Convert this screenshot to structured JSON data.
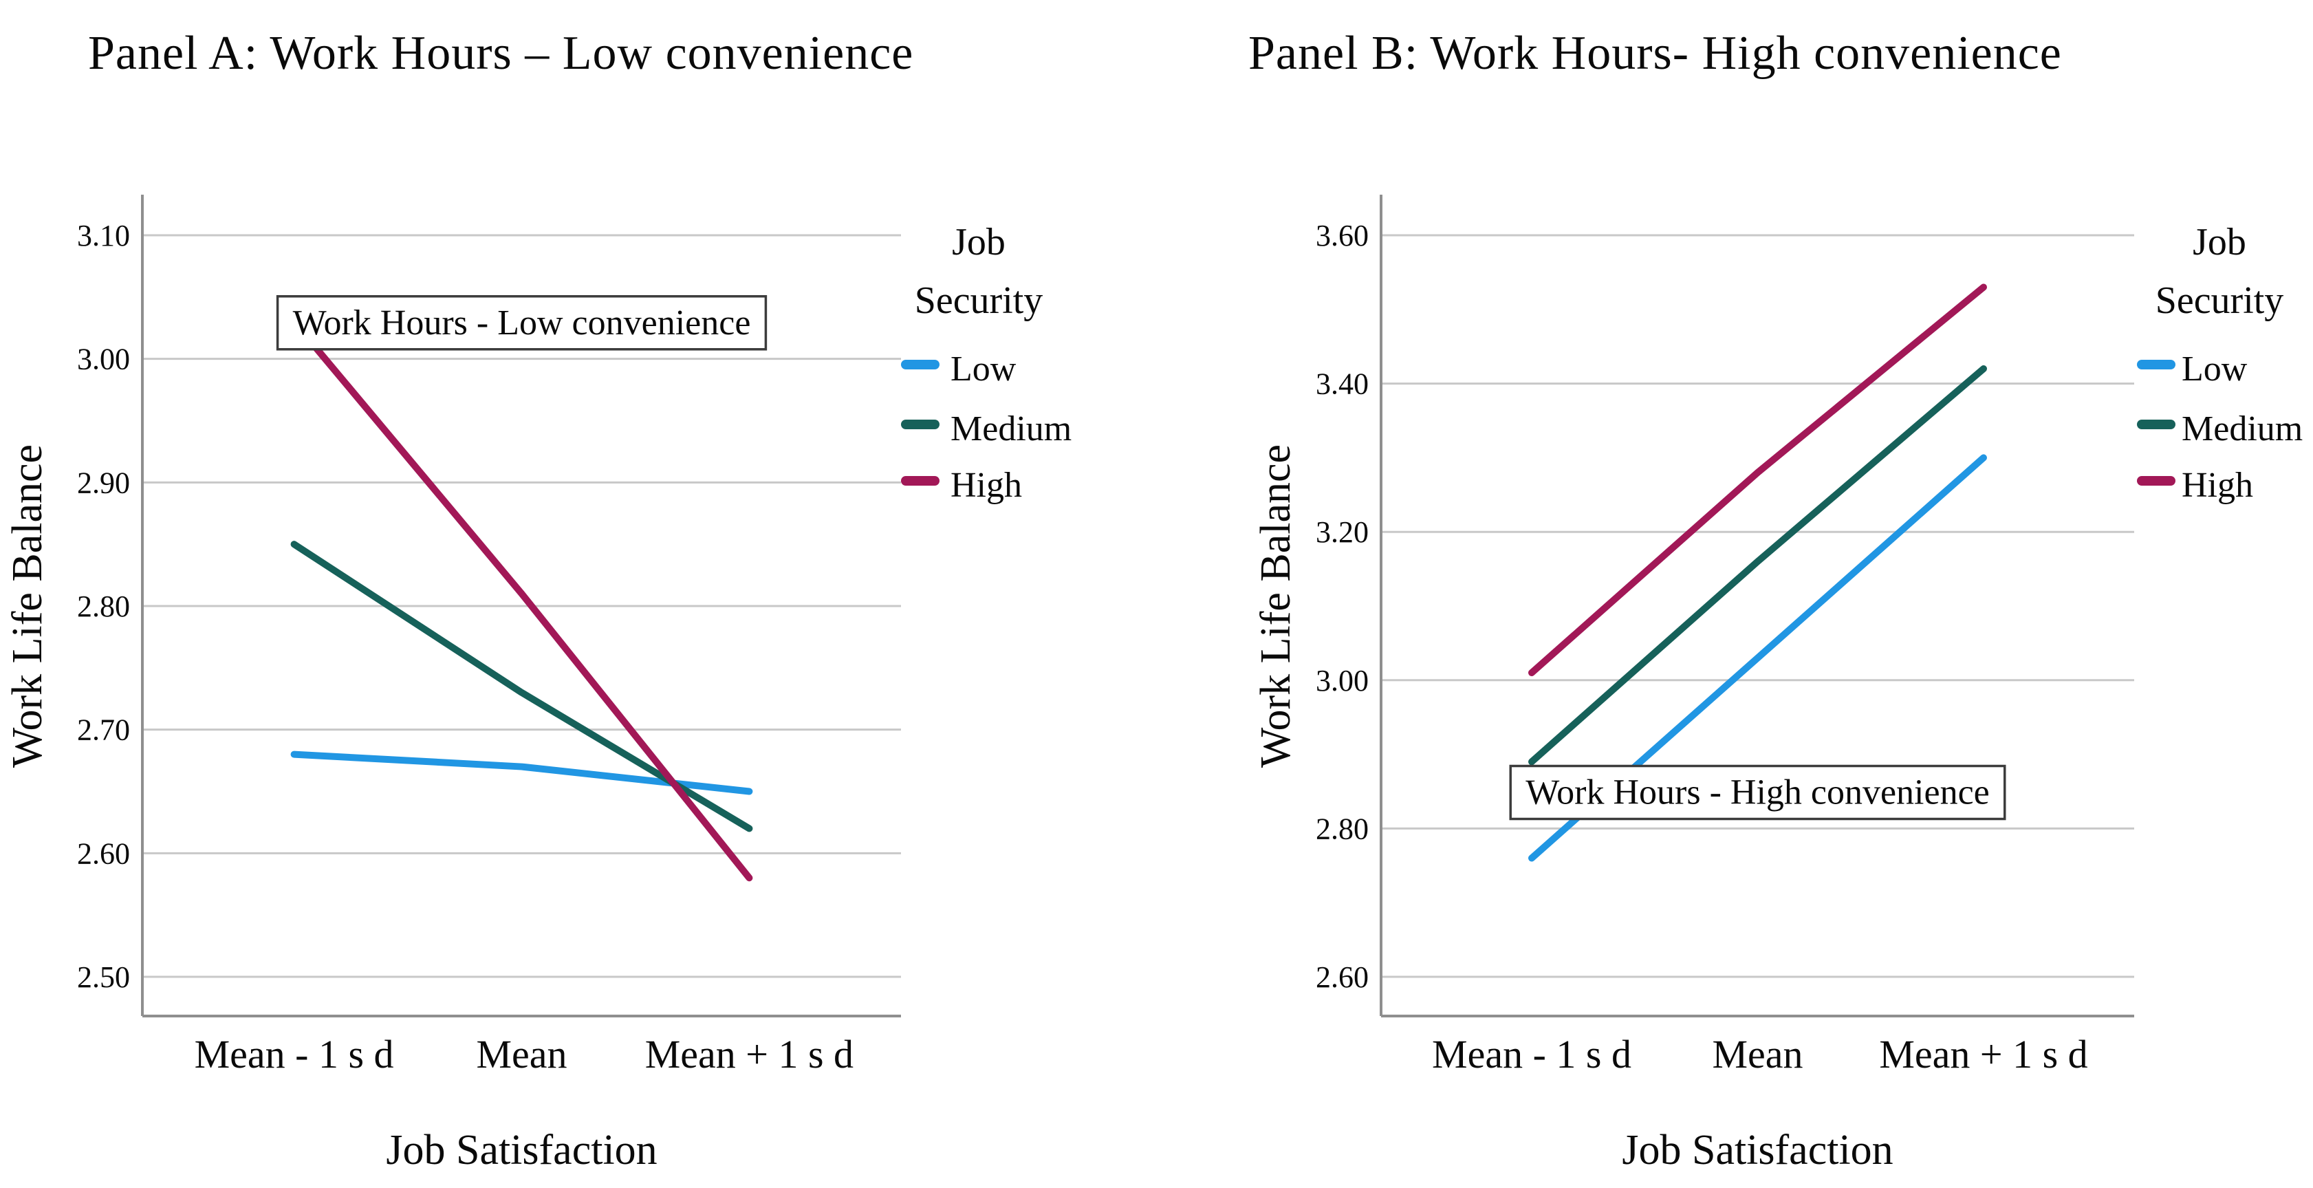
{
  "panel_titles": [
    "Panel A: Work Hours – Low convenience",
    "Panel B: Work Hours- High convenience"
  ],
  "chart_data": [
    {
      "type": "line",
      "panel": "A",
      "annotation": {
        "text": "Work Hours - Low convenience",
        "y": 3.03
      },
      "categories": [
        "Mean - 1 s d",
        "Mean",
        "Mean + 1 s d"
      ],
      "series": [
        {
          "name": "Low",
          "color": "#2196E3",
          "values": [
            2.68,
            2.67,
            2.65
          ]
        },
        {
          "name": "Medium",
          "color": "#16615A",
          "values": [
            2.85,
            2.73,
            2.62
          ]
        },
        {
          "name": "High",
          "color": "#A21857",
          "values": [
            3.03,
            2.81,
            2.58
          ]
        }
      ],
      "xlabel": "Job Satisfaction",
      "ylabel": "Work Life Balance",
      "yticks": [
        "2.50",
        "2.60",
        "2.70",
        "2.80",
        "2.90",
        "3.00",
        "3.10"
      ],
      "ylim": [
        2.46,
        3.12
      ],
      "grid": true,
      "legend": {
        "title_lines": [
          "Job",
          "Security"
        ],
        "entries": [
          "Low",
          "Medium",
          "High"
        ],
        "position": "right"
      }
    },
    {
      "type": "line",
      "panel": "B",
      "annotation": {
        "text": "Work Hours - High convenience",
        "y": 2.85
      },
      "categories": [
        "Mean - 1 s d",
        "Mean",
        "Mean + 1 s d"
      ],
      "series": [
        {
          "name": "Low",
          "color": "#2196E3",
          "values": [
            2.76,
            3.03,
            3.3
          ]
        },
        {
          "name": "Medium",
          "color": "#16615A",
          "values": [
            2.89,
            3.16,
            3.42
          ]
        },
        {
          "name": "High",
          "color": "#A21857",
          "values": [
            3.01,
            3.28,
            3.53
          ]
        }
      ],
      "xlabel": "Job Satisfaction",
      "ylabel": "Work Life Balance",
      "yticks": [
        "2.60",
        "2.80",
        "3.00",
        "3.20",
        "3.40",
        "3.60"
      ],
      "ylim": [
        2.55,
        3.63
      ],
      "grid": true,
      "legend": {
        "title_lines": [
          "Job",
          "Security"
        ],
        "entries": [
          "Low",
          "Medium",
          "High"
        ],
        "position": "right"
      }
    }
  ],
  "colors": {
    "grid": "#C8C8C8",
    "axis": "#8F8F8F",
    "text": "#0A0A0A",
    "annotation_border": "#3C3C3C",
    "background": "#FFFFFF"
  }
}
